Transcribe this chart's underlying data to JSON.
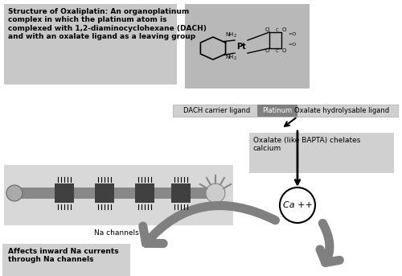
{
  "bg_color": "#ffffff",
  "top_left_box_color": "#c8c8c8",
  "top_left_text": "Structure of Oxaliplatin: An organoplatinum\ncomplex in which the platinum atom is\ncomplexed with 1,2-diaminocyclohexane (DACH)\nand with an oxalate ligand as a leaving group",
  "molecule_box_color": "#b8b8b8",
  "label_bar_color": "#d0d0d0",
  "platinum_box_color": "#808080",
  "dach_label": "DACH carrier ligand",
  "platinum_label": "Platinum",
  "oxalate_label": "Oxalate hydrolysable ligand",
  "na_channel_box_color": "#d8d8d8",
  "na_channels_label": "Na channels",
  "oxalate_chelates_box_color": "#d0d0d0",
  "oxalate_chelates_text": "Oxalate (like BAPTA) chelates\ncalcium",
  "ca_label": "Ca ++",
  "affects_text": "Affects inward Na currents\nthrough Na channels",
  "arrow_color": "#808080",
  "text_color": "#000000"
}
